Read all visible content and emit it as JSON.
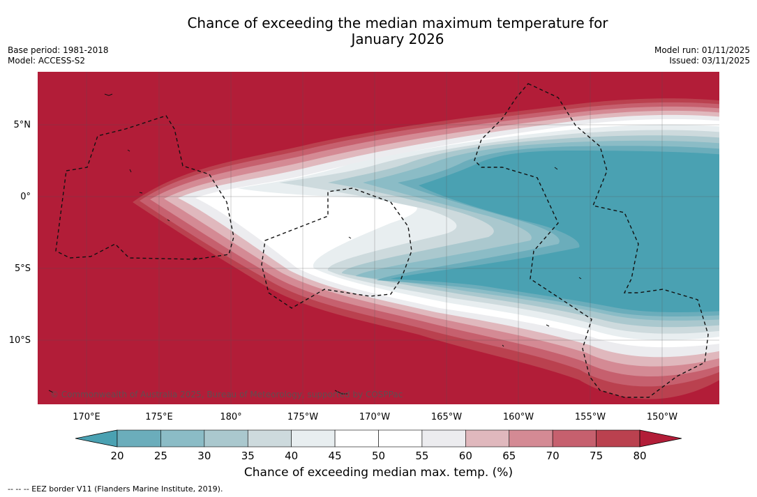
{
  "title_line1": "Chance of exceeding the median maximum temperature for",
  "title_line2": "January 2026",
  "base_period": "Base period: 1981-2018",
  "model": "Model: ACCESS-S2",
  "model_run": "Model run: 01/11/2025",
  "issued": "Issued: 03/11/2025",
  "copyright": "© Commonwealth of Australia 2025, Bureau of Meteorology, supported by COSPPac",
  "lat_labels": [
    "5°N",
    "0°",
    "5°S",
    "10°S"
  ],
  "lon_labels": [
    "170°E",
    "175°E",
    "180°",
    "175°W",
    "170°W",
    "165°W",
    "160°W",
    "155°W",
    "150°W"
  ],
  "colorbar": {
    "ticks": [
      "20",
      "25",
      "30",
      "35",
      "40",
      "45",
      "50",
      "55",
      "60",
      "65",
      "70",
      "75",
      "80"
    ],
    "colors": [
      "#4aa1b2",
      "#6badbb",
      "#8bbcc6",
      "#aac8ce",
      "#cddadd",
      "#e8eef0",
      "#ffffff",
      "#ffffff",
      "#ececef",
      "#e0b8bd",
      "#d48a94",
      "#c6606e",
      "#ba414f",
      "#b21d38"
    ],
    "label": "Chance of exceeding median max. temp. (%)"
  },
  "legend_note": "-- -- -- EEZ border V11 (Flanders Marine Institute, 2019)."
}
